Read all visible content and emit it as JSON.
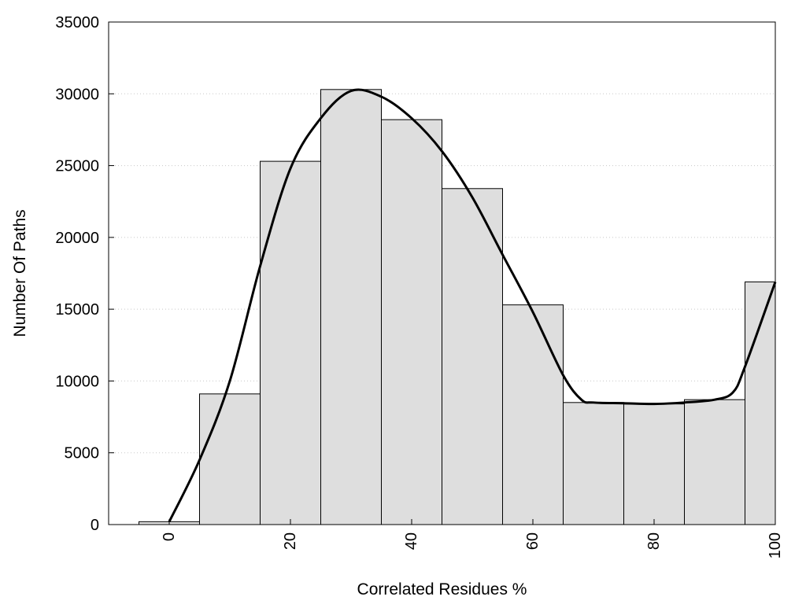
{
  "chart_data": {
    "type": "bar",
    "title": "",
    "xlabel": "Correlated Residues %",
    "ylabel": "Number Of Paths",
    "xlim": [
      -10,
      100
    ],
    "ylim": [
      0,
      35000
    ],
    "x_ticks": [
      "0",
      "20",
      "40",
      "60",
      "80",
      "100"
    ],
    "y_ticks": [
      "0",
      "5000",
      "10000",
      "15000",
      "20000",
      "25000",
      "30000",
      "35000"
    ],
    "grid": "horizontal dotted",
    "bar_color": "#dedede",
    "bar_edge_color": "#000000",
    "bins": [
      {
        "from": -5,
        "to": 5,
        "value": 200
      },
      {
        "from": 5,
        "to": 15,
        "value": 9100
      },
      {
        "from": 15,
        "to": 25,
        "value": 25300
      },
      {
        "from": 25,
        "to": 35,
        "value": 30300
      },
      {
        "from": 35,
        "to": 45,
        "value": 28200
      },
      {
        "from": 45,
        "to": 55,
        "value": 23400
      },
      {
        "from": 55,
        "to": 65,
        "value": 15300
      },
      {
        "from": 65,
        "to": 75,
        "value": 8500
      },
      {
        "from": 75,
        "to": 85,
        "value": 8400
      },
      {
        "from": 85,
        "to": 95,
        "value": 8700
      },
      {
        "from": 95,
        "to": 100,
        "value": 16900
      }
    ],
    "curve": {
      "x": [
        0,
        5,
        10,
        15,
        20,
        25,
        30,
        35,
        40,
        45,
        50,
        55,
        60,
        65,
        68,
        70,
        75,
        80,
        85,
        90,
        93,
        95,
        100
      ],
      "y": [
        200,
        4500,
        10000,
        18000,
        24800,
        28300,
        30200,
        29800,
        28300,
        26000,
        22800,
        18800,
        14800,
        10400,
        8700,
        8500,
        8450,
        8400,
        8500,
        8700,
        9200,
        11000,
        16900
      ]
    }
  }
}
